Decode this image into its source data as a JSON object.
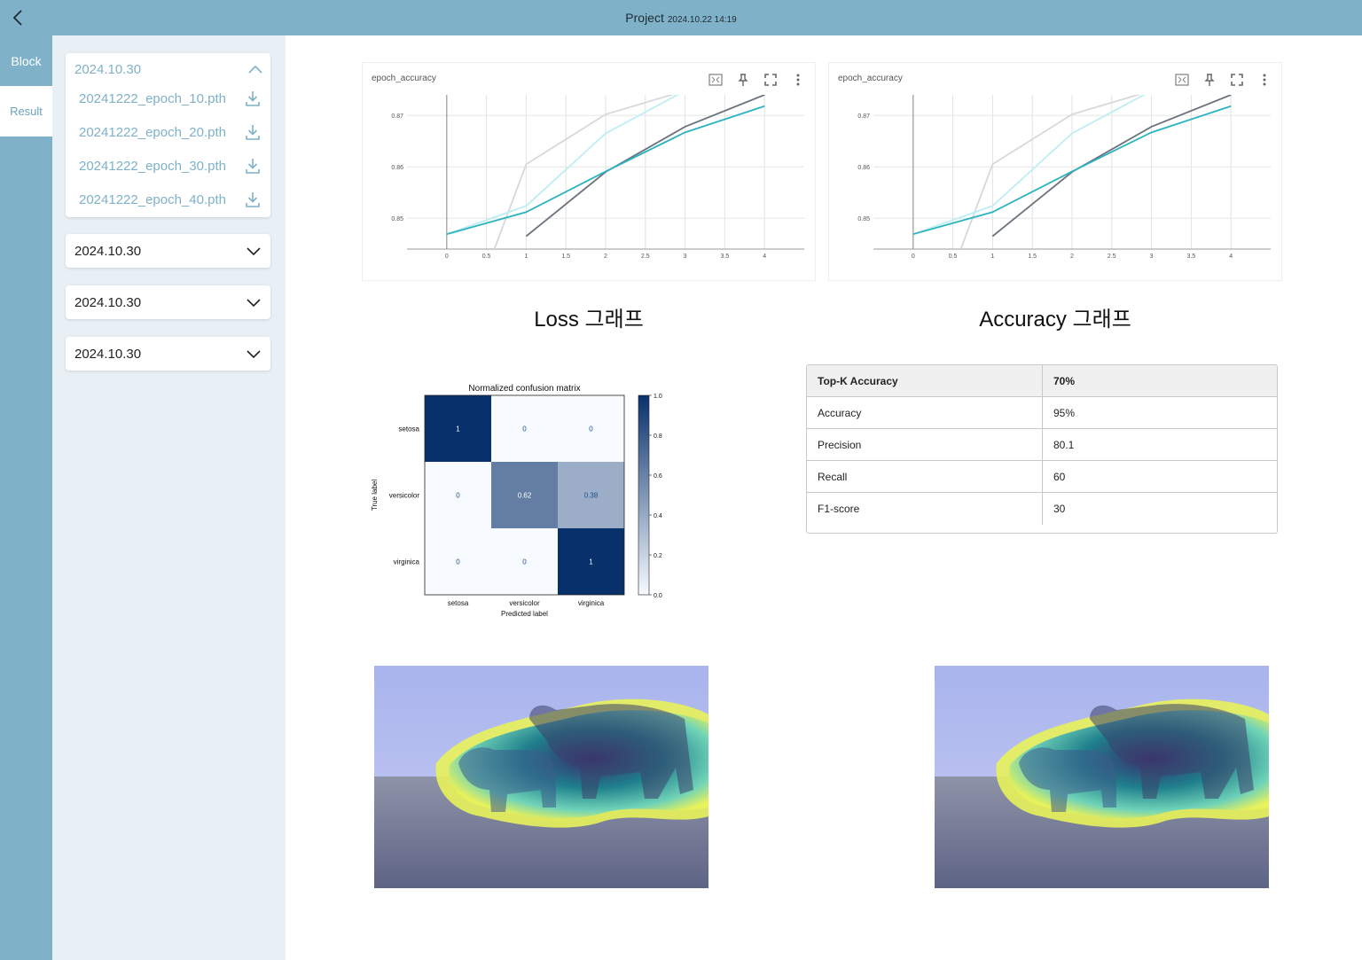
{
  "header": {
    "title": "Project",
    "timestamp": "2024.10.22 14:19"
  },
  "rail": {
    "tabs": [
      "Block",
      "Result"
    ]
  },
  "sidebar": {
    "open_group": {
      "date": "2024.10.30",
      "files": [
        "20241222_epoch_10.pth",
        "20241222_epoch_20.pth",
        "20241222_epoch_30.pth",
        "20241222_epoch_40.pth"
      ]
    },
    "closed_groups": [
      "2024.10.30",
      "2024.10.30",
      "2024.10.30"
    ]
  },
  "charts": {
    "left_title": "epoch_accuracy",
    "right_title": "epoch_accuracy",
    "left_caption": "Loss 그래프",
    "right_caption": "Accuracy 그래프"
  },
  "chart_data": [
    {
      "type": "line",
      "title": "epoch_accuracy",
      "x_ticks": [
        "0",
        "0.5",
        "1",
        "1.5",
        "2",
        "2.5",
        "3",
        "3.5",
        "4"
      ],
      "y_ticks": [
        "0.85",
        "0.86",
        "0.87"
      ],
      "ylim": [
        0.844,
        0.874
      ],
      "xlim": [
        -0.5,
        4.5
      ],
      "series": [
        {
          "color": "#2bb3c0",
          "x": [
            0,
            1,
            2,
            3,
            4
          ],
          "y": [
            0.8469,
            0.8512,
            0.8591,
            0.8667,
            0.8718
          ]
        },
        {
          "color": "#bdeef2",
          "x": [
            0,
            1,
            2,
            3
          ],
          "y": [
            0.8469,
            0.8524,
            0.8665,
            0.8748
          ]
        },
        {
          "color": "#6a737d",
          "x": [
            1,
            2,
            3,
            4
          ],
          "y": [
            0.8465,
            0.859,
            0.8678,
            0.874
          ]
        },
        {
          "color": "#d5d9dc",
          "x": [
            0.6,
            1,
            2,
            3
          ],
          "y": [
            0.844,
            0.8605,
            0.8702,
            0.8748
          ]
        }
      ]
    },
    {
      "type": "line",
      "title": "epoch_accuracy",
      "x_ticks": [
        "0",
        "0.5",
        "1",
        "1.5",
        "2",
        "2.5",
        "3",
        "3.5",
        "4"
      ],
      "y_ticks": [
        "0.85",
        "0.86",
        "0.87"
      ],
      "ylim": [
        0.844,
        0.874
      ],
      "xlim": [
        -0.5,
        4.5
      ],
      "series": [
        {
          "color": "#2bb3c0",
          "x": [
            0,
            1,
            2,
            3,
            4
          ],
          "y": [
            0.8469,
            0.8512,
            0.8591,
            0.8667,
            0.8718
          ]
        },
        {
          "color": "#bdeef2",
          "x": [
            0,
            1,
            2,
            3
          ],
          "y": [
            0.8469,
            0.8524,
            0.8665,
            0.8748
          ]
        },
        {
          "color": "#6a737d",
          "x": [
            1,
            2,
            3,
            4
          ],
          "y": [
            0.8465,
            0.859,
            0.8678,
            0.874
          ]
        },
        {
          "color": "#d5d9dc",
          "x": [
            0.6,
            1,
            2,
            3
          ],
          "y": [
            0.844,
            0.8605,
            0.8702,
            0.8748
          ]
        }
      ]
    },
    {
      "type": "heatmap",
      "title": "Normalized confusion matrix",
      "xlabel": "Predicted label",
      "ylabel": "True label",
      "labels": [
        "setosa",
        "versicolor",
        "virginica"
      ],
      "cells": [
        [
          "1",
          "0",
          "0"
        ],
        [
          "0",
          "0.62",
          "0.38"
        ],
        [
          "0",
          "0",
          "1"
        ]
      ],
      "values": [
        [
          1,
          0,
          0
        ],
        [
          0,
          0.62,
          0.38
        ],
        [
          0,
          0,
          1
        ]
      ],
      "colorbar_ticks": [
        "1.0",
        "0.8",
        "0.6",
        "0.4",
        "0.2",
        "0.0"
      ]
    }
  ],
  "metrics": {
    "rows": [
      [
        "Top-K Accuracy",
        "70%"
      ],
      [
        "Accuracy",
        "95%"
      ],
      [
        "Precision",
        "80.1"
      ],
      [
        "Recall",
        "60"
      ],
      [
        "F1-score",
        "30"
      ]
    ]
  },
  "icons": {
    "back": "chevron-left-icon",
    "collapse": "chevron-up-icon",
    "expand": "chevron-down-icon",
    "download": "download-icon",
    "chart_tools": [
      "fit-domain-icon",
      "pin-icon",
      "fullscreen-icon",
      "more-vert-icon"
    ]
  },
  "colors": {
    "accent": "#7fb1c8",
    "sidebar_bg": "#e8f0f5"
  }
}
